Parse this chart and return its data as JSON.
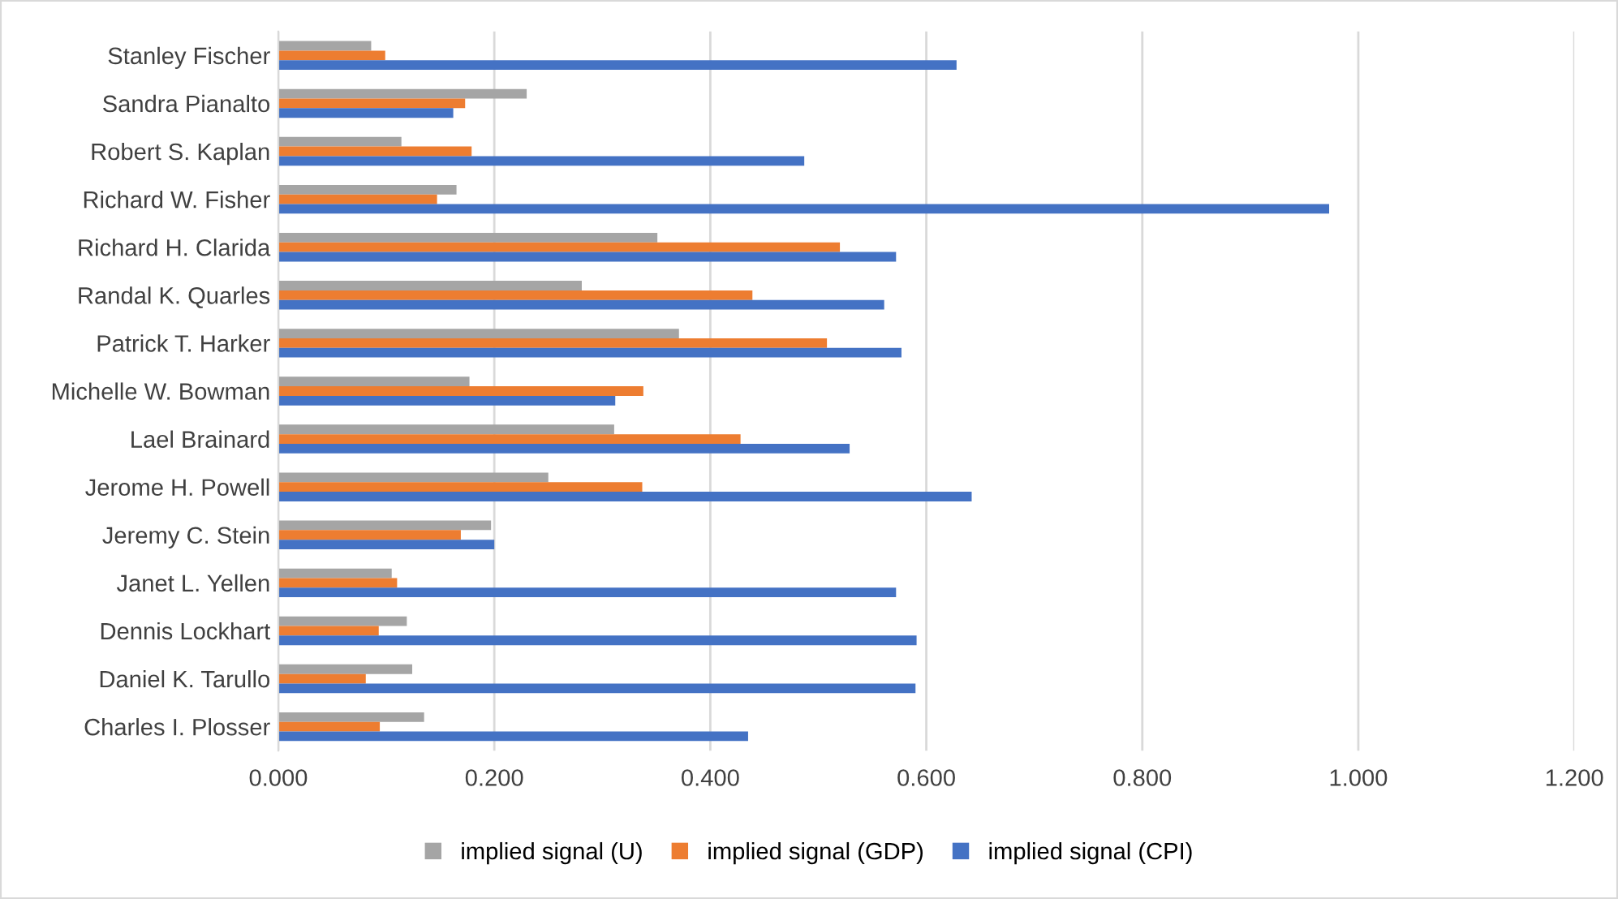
{
  "chart_data": {
    "type": "bar",
    "orientation": "horizontal",
    "categories": [
      "Stanley Fischer",
      "Sandra Pianalto",
      "Robert S. Kaplan",
      "Richard W. Fisher",
      "Richard H. Clarida",
      "Randal K. Quarles",
      "Patrick T. Harker",
      "Michelle W. Bowman",
      "Lael Brainard",
      "Jerome H. Powell",
      "Jeremy C. Stein",
      "Janet L. Yellen",
      "Dennis Lockhart",
      "Daniel K. Tarullo",
      "Charles I. Plosser"
    ],
    "series": [
      {
        "name": "implied signal (U)",
        "color": "#a5a5a5",
        "values": [
          0.086,
          0.23,
          0.114,
          0.165,
          0.351,
          0.281,
          0.371,
          0.177,
          0.311,
          0.25,
          0.197,
          0.105,
          0.119,
          0.124,
          0.135
        ]
      },
      {
        "name": "implied signal (GDP)",
        "color": "#ed7d31",
        "values": [
          0.099,
          0.173,
          0.179,
          0.147,
          0.52,
          0.439,
          0.508,
          0.338,
          0.428,
          0.337,
          0.169,
          0.11,
          0.093,
          0.081,
          0.094
        ]
      },
      {
        "name": "implied signal (CPI)",
        "color": "#4472c4",
        "values": [
          0.628,
          0.162,
          0.487,
          0.973,
          0.572,
          0.561,
          0.577,
          0.312,
          0.529,
          0.642,
          0.2,
          0.572,
          0.591,
          0.59,
          0.435
        ]
      }
    ],
    "xlim": [
      0,
      1.2
    ],
    "xticks": [
      {
        "value": 0,
        "label": "0.000"
      },
      {
        "value": 0.2,
        "label": "0.200"
      },
      {
        "value": 0.4,
        "label": "0.400"
      },
      {
        "value": 0.6,
        "label": "0.600"
      },
      {
        "value": 0.8,
        "label": "0.800"
      },
      {
        "value": 1.0,
        "label": "1.000"
      },
      {
        "value": 1.2,
        "label": "1.200"
      }
    ],
    "grid": "x",
    "legend": "bottom"
  }
}
